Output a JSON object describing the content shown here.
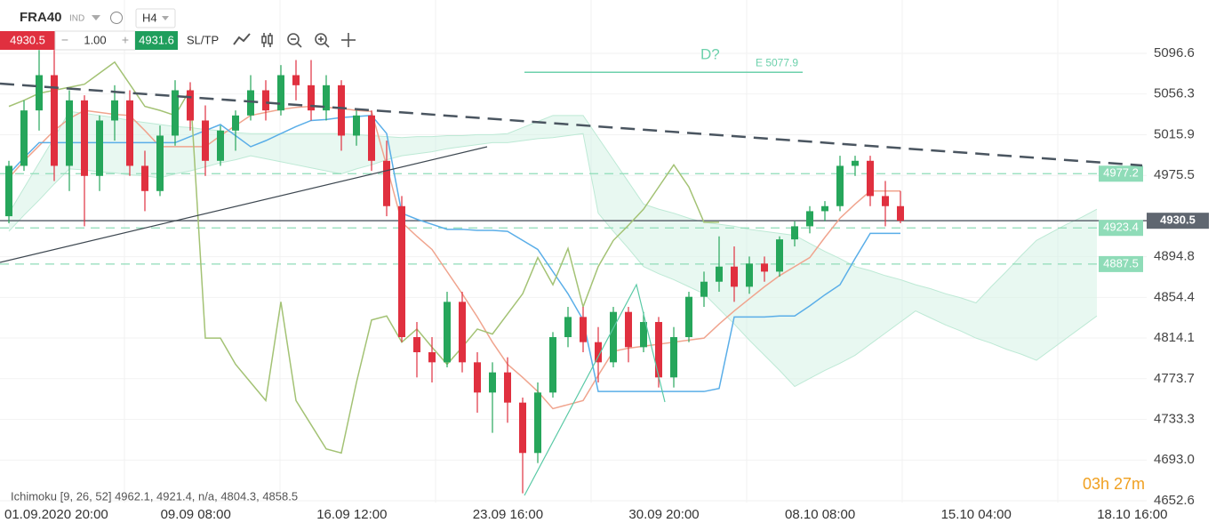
{
  "toolbar": {
    "symbol": "FRA40",
    "market": "IND",
    "timeframe": "H4",
    "sell": "4930.5",
    "volume": "1.00",
    "buy": "4931.6",
    "sltp": "SL/TP"
  },
  "chart_data": {
    "type": "candlestick",
    "up_color": "#26a65b",
    "down_color": "#e0303f",
    "open": [
      4935,
      4985,
      5040,
      5075,
      4985,
      5050,
      4975,
      5030,
      5050,
      4985,
      4960,
      5015,
      5060,
      5030,
      4990,
      5020,
      5035,
      5060,
      5040,
      5075,
      5065,
      5040,
      5065,
      5015,
      5035,
      4990,
      4945,
      4815,
      4800,
      4790,
      4850,
      4790,
      4760,
      4780,
      4750,
      4700,
      4760,
      4815,
      4835,
      4810,
      4790,
      4840,
      4805,
      4830,
      4775,
      4815,
      4855,
      4870,
      4885,
      4865,
      4888,
      4880,
      4912,
      4925,
      4940,
      4945,
      4985,
      4990,
      4955,
      4945
    ],
    "high": [
      4990,
      5050,
      5100,
      5100,
      5060,
      5055,
      5035,
      5065,
      5060,
      5000,
      5025,
      5070,
      5068,
      5045,
      5025,
      5040,
      5075,
      5070,
      5085,
      5090,
      5090,
      5075,
      5070,
      5040,
      5040,
      5010,
      4955,
      4830,
      4815,
      4860,
      4860,
      4800,
      4790,
      4795,
      4755,
      4770,
      4820,
      4845,
      4845,
      4825,
      4845,
      4845,
      4840,
      4835,
      4825,
      4860,
      4880,
      4915,
      4905,
      4895,
      4895,
      4915,
      4930,
      4945,
      4950,
      4995,
      4995,
      4995,
      4970,
      4960
    ],
    "low": [
      4928,
      4980,
      5020,
      4970,
      4960,
      4925,
      4960,
      5010,
      4975,
      4940,
      4955,
      5005,
      5020,
      4975,
      4985,
      5000,
      5030,
      5030,
      5035,
      5050,
      5030,
      5030,
      5000,
      5005,
      4980,
      4935,
      4810,
      4775,
      4770,
      4785,
      4780,
      4740,
      4720,
      4730,
      4660,
      4690,
      4755,
      4805,
      4800,
      4770,
      4785,
      4790,
      4800,
      4765,
      4765,
      4810,
      4845,
      4860,
      4850,
      4858,
      4870,
      4875,
      4905,
      4918,
      4930,
      4940,
      4975,
      4945,
      4925,
      4928
    ],
    "close": [
      4985,
      5040,
      5075,
      4985,
      5050,
      4975,
      5030,
      5050,
      4985,
      4960,
      5015,
      5060,
      5030,
      4990,
      5020,
      5035,
      5060,
      5040,
      5075,
      5065,
      5040,
      5065,
      5015,
      5035,
      4990,
      4945,
      4815,
      4800,
      4790,
      4850,
      4790,
      4760,
      4780,
      4750,
      4700,
      4760,
      4815,
      4835,
      4810,
      4790,
      4840,
      4805,
      4830,
      4775,
      4815,
      4855,
      4870,
      4885,
      4865,
      4888,
      4880,
      4912,
      4925,
      4940,
      4945,
      4985,
      4990,
      4955,
      4945,
      4930.5
    ],
    "lines": [
      {
        "color": "#f0a48e",
        "values": [
          4973,
          4990,
          5005,
          5020,
          5032,
          5040,
          5038,
          5036,
          5035,
          5020,
          5004,
          5004,
          5004,
          5004,
          5015,
          5025,
          5035,
          5038,
          5041,
          5043,
          5044,
          5043,
          5042,
          5040,
          5039,
          4985,
          4929,
          4915,
          4902,
          4880,
          4858,
          4835,
          4810,
          4788,
          4775,
          4761,
          4744,
          4748,
          4752,
          4777,
          4801,
          4804,
          4806,
          4808,
          4810,
          4812,
          4814,
          4828,
          4841,
          4853,
          4865,
          4876,
          4885,
          4894,
          4914,
          4933,
          4947,
          4960,
          4960,
          4960
        ]
      },
      {
        "color": "#5aaee8",
        "values": [
          4977,
          4993,
          5008,
          5008,
          5008,
          5008,
          5008,
          5008,
          5008,
          5008,
          5008,
          5008,
          5014,
          5020,
          5026,
          5015,
          5004,
          5010,
          5017,
          5024,
          5030,
          5031,
          5033,
          5034,
          5035,
          5017,
          4938,
          4932,
          4927,
          4922,
          4922,
          4921,
          4921,
          4920,
          4911,
          4902,
          4880,
          4858,
          4832,
          4761,
          4761,
          4761,
          4761,
          4761,
          4761,
          4761,
          4761,
          4764,
          4835,
          4835,
          4835,
          4836,
          4836,
          4846,
          4857,
          4867,
          4893,
          4918,
          4918,
          4918
        ]
      },
      {
        "color": "#a3c274",
        "values": [
          5044,
          5050,
          5057,
          5060,
          5063,
          5066,
          5077,
          5088,
          5066,
          5044,
          5040,
          5035,
          5061,
          4814,
          4814,
          4788,
          4770,
          4752,
          4850,
          4752,
          4728,
          4704,
          4700,
          4770,
          4832,
          4836,
          4810,
          4823,
          4805,
          4788,
          4805,
          4823,
          4818,
          4838,
          4858,
          4894,
          4867,
          4903,
          4845,
          4885,
          4911,
          4926,
          4942,
          4964,
          4986,
          4964,
          4929,
          4929
        ]
      }
    ],
    "cloud": {
      "color": "#d6f3e6",
      "upper": [
        4938,
        4963,
        4988,
        5013,
        5039,
        5037,
        5035,
        5033,
        5030,
        5028,
        5026,
        5024,
        5023,
        5021,
        5020,
        5018,
        5017,
        5017,
        5017,
        5017,
        5017,
        5017,
        5017,
        5016,
        5015,
        5014,
        5013,
        5014,
        5014,
        5015,
        5015,
        5016,
        5016,
        5017,
        5023,
        5029,
        5035,
        5035,
        5035,
        5013,
        4991,
        4969,
        4947,
        4942,
        4938,
        4933,
        4929,
        4927,
        4925,
        4922,
        4920,
        4918,
        4916,
        4908,
        4900,
        4893,
        4885,
        4881,
        4876,
        4872,
        4867,
        4863,
        4858,
        4854,
        4849,
        4865,
        4880,
        4896,
        4911,
        4919,
        4927,
        4934,
        4942
      ],
      "lower": [
        4920,
        4936,
        4951,
        4967,
        4982,
        4981,
        4979,
        4978,
        4976,
        4975,
        4973,
        4977,
        4980,
        4984,
        4988,
        4991,
        4995,
        4992,
        4989,
        4986,
        4983,
        4980,
        4977,
        4982,
        4986,
        4991,
        4995,
        4997,
        4999,
        5002,
        5004,
        5006,
        5008,
        5008,
        5010,
        5012,
        5013,
        5015,
        5017,
        4938,
        4920,
        4903,
        4885,
        4878,
        4872,
        4865,
        4858,
        4843,
        4828,
        4812,
        4797,
        4782,
        4766,
        4774,
        4782,
        4789,
        4797,
        4808,
        4819,
        4830,
        4841,
        4834,
        4827,
        4821,
        4814,
        4809,
        4803,
        4798,
        4792,
        4803,
        4814,
        4825,
        4836
      ]
    },
    "ylim": [
      4646.4,
      5149.6
    ],
    "yticks": [
      5096.6,
      5056.3,
      5015.9,
      4975.5,
      4894.8,
      4854.4,
      4814.1,
      4773.7,
      4733.3,
      {
        "value": 4693.0,
        "label": "4693.0"
      },
      4652.6
    ],
    "grid": true,
    "x_labels": [
      "01.09.2020 20:00",
      "09.09 08:00",
      "16.09 12:00",
      "23.09 16:00",
      "30.09 20:00",
      "08.10 08:00",
      "15.10 04:00",
      "18.10 16:00"
    ],
    "levels": [
      {
        "value": 4977.2,
        "color": "#8fdcb8"
      },
      {
        "value": 4923.4,
        "color": "#8fdcb8"
      },
      {
        "value": 4887.5,
        "color": "#8fdcb8"
      }
    ],
    "current_price": {
      "value": 4930.5,
      "color": "#5f6670"
    },
    "pattern_label": "D?",
    "target": {
      "value": 5077.9,
      "label": "E 5077.9"
    },
    "indicator_legend": "Ichimoku [9, 26, 52] 4962.1, 4921.4, n/a, 4804.3, 4858.5",
    "timer": "03h 27m"
  }
}
